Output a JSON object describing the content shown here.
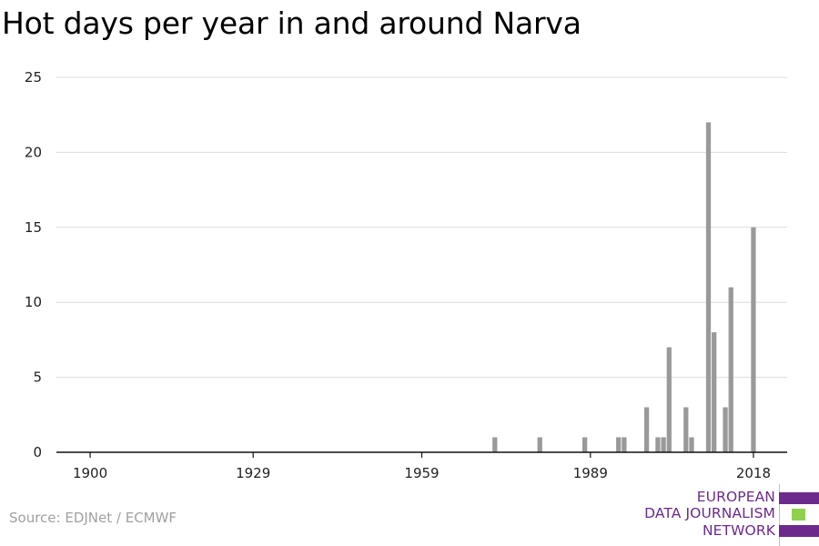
{
  "title": "Hot days per year in and around Narva",
  "source": "Source: EDJNet / ECMWF",
  "logo": {
    "lines": [
      "EUROPEAN",
      "DATA JOURNALISM",
      "NETWORK"
    ],
    "colors": [
      "#6b2a8c",
      "#8fd14f",
      "#6b2a8c"
    ]
  },
  "chart_data": {
    "type": "bar",
    "title": "Hot days per year in and around Narva",
    "xlabel": "",
    "ylabel": "",
    "xlim": [
      1894,
      2024
    ],
    "ylim": [
      0,
      25
    ],
    "x_ticks": [
      1900,
      1929,
      1959,
      1989,
      2018
    ],
    "y_ticks": [
      0,
      5,
      10,
      15,
      20,
      25
    ],
    "grid": true,
    "bar_color": "#999999",
    "x": [
      1972,
      1980,
      1988,
      1994,
      1995,
      1999,
      2001,
      2002,
      2003,
      2006,
      2007,
      2010,
      2011,
      2013,
      2014,
      2018
    ],
    "values": [
      1,
      1,
      1,
      1,
      1,
      3,
      1,
      1,
      7,
      3,
      1,
      22,
      8,
      3,
      11,
      15
    ]
  }
}
